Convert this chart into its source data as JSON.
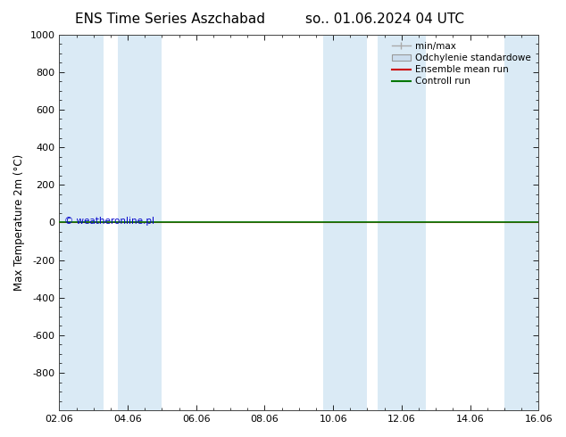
{
  "title_left": "ENS Time Series Aszchabad",
  "title_right": "so.. 01.06.2024 04 UTC",
  "ylabel": "Max Temperature 2m (°C)",
  "ylim_top": -1000,
  "ylim_bottom": 1000,
  "yticks": [
    -800,
    -600,
    -400,
    -200,
    0,
    200,
    400,
    600,
    800,
    1000
  ],
  "xlim": [
    0,
    14
  ],
  "xtick_positions": [
    0,
    2,
    4,
    6,
    8,
    10,
    12,
    14
  ],
  "xtick_labels": [
    "02.06",
    "04.06",
    "06.06",
    "08.06",
    "10.06",
    "12.06",
    "14.06",
    "16.06"
  ],
  "copyright": "© weatheronline.pl",
  "bg_color": "#ffffff",
  "shaded_ranges": [
    [
      0,
      1.3
    ],
    [
      1.7,
      3.0
    ],
    [
      7.7,
      9.0
    ],
    [
      9.3,
      10.7
    ],
    [
      13.0,
      14.0
    ]
  ],
  "shaded_color": "#daeaf5",
  "control_run_color": "#007700",
  "ensemble_mean_color": "#cc0000",
  "minmax_color_dark": "#aaaaaa",
  "minmax_color_light": "#ccddee",
  "legend_entries": [
    "min/max",
    "Odchylenie standardowe",
    "Ensemble mean run",
    "Controll run"
  ],
  "title_fontsize": 11,
  "axis_fontsize": 8.5,
  "tick_fontsize": 8
}
